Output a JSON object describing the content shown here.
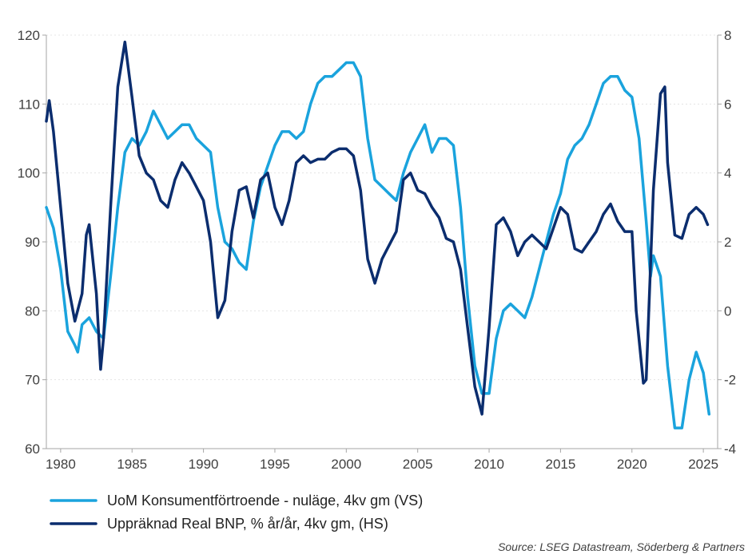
{
  "chart_data": {
    "type": "line",
    "title": "",
    "xlabel": "",
    "ylabel_left": "",
    "ylabel_right": "",
    "x_ticks": [
      1980,
      1985,
      1990,
      1995,
      2000,
      2005,
      2010,
      2015,
      2020,
      2025
    ],
    "xlim": [
      1979,
      2026
    ],
    "ylim_left": [
      60,
      120
    ],
    "ylim_right": [
      -4,
      8
    ],
    "y_ticks_left": [
      60,
      70,
      80,
      90,
      100,
      110,
      120
    ],
    "y_ticks_right": [
      -4,
      -2,
      0,
      2,
      4,
      6,
      8
    ],
    "grid": true,
    "legend_position": "bottom-left",
    "series": [
      {
        "name": "UoM Konsumentförtroende - nuläge, 4kv gm (VS)",
        "axis": "left",
        "color": "#1aa3dd",
        "points": [
          [
            1979.0,
            95
          ],
          [
            1979.5,
            92
          ],
          [
            1980.0,
            86
          ],
          [
            1980.5,
            77
          ],
          [
            1981.0,
            75
          ],
          [
            1981.2,
            74
          ],
          [
            1981.5,
            78
          ],
          [
            1982.0,
            79
          ],
          [
            1982.5,
            77
          ],
          [
            1983.0,
            76
          ],
          [
            1983.5,
            85
          ],
          [
            1984.0,
            95
          ],
          [
            1984.5,
            103
          ],
          [
            1985.0,
            105
          ],
          [
            1985.5,
            104
          ],
          [
            1986.0,
            106
          ],
          [
            1986.5,
            109
          ],
          [
            1987.0,
            107
          ],
          [
            1987.5,
            105
          ],
          [
            1988.0,
            106
          ],
          [
            1988.5,
            107
          ],
          [
            1989.0,
            107
          ],
          [
            1989.5,
            105
          ],
          [
            1990.0,
            104
          ],
          [
            1990.5,
            103
          ],
          [
            1991.0,
            95
          ],
          [
            1991.5,
            90
          ],
          [
            1992.0,
            89
          ],
          [
            1992.5,
            87
          ],
          [
            1993.0,
            86
          ],
          [
            1993.5,
            93
          ],
          [
            1994.0,
            98
          ],
          [
            1994.5,
            101
          ],
          [
            1995.0,
            104
          ],
          [
            1995.5,
            106
          ],
          [
            1996.0,
            106
          ],
          [
            1996.5,
            105
          ],
          [
            1997.0,
            106
          ],
          [
            1997.5,
            110
          ],
          [
            1998.0,
            113
          ],
          [
            1998.5,
            114
          ],
          [
            1999.0,
            114
          ],
          [
            1999.5,
            115
          ],
          [
            2000.0,
            116
          ],
          [
            2000.5,
            116
          ],
          [
            2001.0,
            114
          ],
          [
            2001.5,
            105
          ],
          [
            2002.0,
            99
          ],
          [
            2002.5,
            98
          ],
          [
            2003.0,
            97
          ],
          [
            2003.5,
            96
          ],
          [
            2004.0,
            100
          ],
          [
            2004.5,
            103
          ],
          [
            2005.0,
            105
          ],
          [
            2005.5,
            107
          ],
          [
            2006.0,
            103
          ],
          [
            2006.5,
            105
          ],
          [
            2007.0,
            105
          ],
          [
            2007.5,
            104
          ],
          [
            2008.0,
            95
          ],
          [
            2008.5,
            82
          ],
          [
            2009.0,
            72
          ],
          [
            2009.5,
            68
          ],
          [
            2010.0,
            68
          ],
          [
            2010.5,
            76
          ],
          [
            2011.0,
            80
          ],
          [
            2011.5,
            81
          ],
          [
            2012.0,
            80
          ],
          [
            2012.5,
            79
          ],
          [
            2013.0,
            82
          ],
          [
            2013.5,
            86
          ],
          [
            2014.0,
            90
          ],
          [
            2014.5,
            94
          ],
          [
            2015.0,
            97
          ],
          [
            2015.5,
            102
          ],
          [
            2016.0,
            104
          ],
          [
            2016.5,
            105
          ],
          [
            2017.0,
            107
          ],
          [
            2017.5,
            110
          ],
          [
            2018.0,
            113
          ],
          [
            2018.5,
            114
          ],
          [
            2019.0,
            114
          ],
          [
            2019.5,
            112
          ],
          [
            2020.0,
            111
          ],
          [
            2020.5,
            105
          ],
          [
            2021.0,
            93
          ],
          [
            2021.3,
            85
          ],
          [
            2021.5,
            88
          ],
          [
            2022.0,
            85
          ],
          [
            2022.5,
            72
          ],
          [
            2023.0,
            63
          ],
          [
            2023.5,
            63
          ],
          [
            2024.0,
            70
          ],
          [
            2024.5,
            74
          ],
          [
            2025.0,
            71
          ],
          [
            2025.4,
            65
          ]
        ]
      },
      {
        "name": "Uppräknad Real BNP, % år/år, 4kv gm, (HS)",
        "axis": "right",
        "color": "#0b2d6e",
        "points": [
          [
            1979.0,
            5.5
          ],
          [
            1979.2,
            6.1
          ],
          [
            1979.5,
            5.2
          ],
          [
            1980.0,
            3.0
          ],
          [
            1980.5,
            0.8
          ],
          [
            1981.0,
            -0.3
          ],
          [
            1981.5,
            0.5
          ],
          [
            1981.8,
            2.2
          ],
          [
            1982.0,
            2.5
          ],
          [
            1982.5,
            0.5
          ],
          [
            1982.8,
            -1.7
          ],
          [
            1983.0,
            -0.8
          ],
          [
            1983.5,
            3.0
          ],
          [
            1984.0,
            6.5
          ],
          [
            1984.5,
            7.8
          ],
          [
            1985.0,
            6.2
          ],
          [
            1985.5,
            4.5
          ],
          [
            1986.0,
            4.0
          ],
          [
            1986.5,
            3.8
          ],
          [
            1987.0,
            3.2
          ],
          [
            1987.5,
            3.0
          ],
          [
            1988.0,
            3.8
          ],
          [
            1988.5,
            4.3
          ],
          [
            1989.0,
            4.0
          ],
          [
            1989.5,
            3.6
          ],
          [
            1990.0,
            3.2
          ],
          [
            1990.5,
            2.0
          ],
          [
            1991.0,
            -0.2
          ],
          [
            1991.5,
            0.3
          ],
          [
            1992.0,
            2.3
          ],
          [
            1992.5,
            3.5
          ],
          [
            1993.0,
            3.6
          ],
          [
            1993.5,
            2.7
          ],
          [
            1994.0,
            3.8
          ],
          [
            1994.5,
            4.0
          ],
          [
            1995.0,
            3.0
          ],
          [
            1995.5,
            2.5
          ],
          [
            1996.0,
            3.2
          ],
          [
            1996.5,
            4.3
          ],
          [
            1997.0,
            4.5
          ],
          [
            1997.5,
            4.3
          ],
          [
            1998.0,
            4.4
          ],
          [
            1998.5,
            4.4
          ],
          [
            1999.0,
            4.6
          ],
          [
            1999.5,
            4.7
          ],
          [
            2000.0,
            4.7
          ],
          [
            2000.5,
            4.5
          ],
          [
            2001.0,
            3.5
          ],
          [
            2001.5,
            1.5
          ],
          [
            2002.0,
            0.8
          ],
          [
            2002.5,
            1.5
          ],
          [
            2003.0,
            1.9
          ],
          [
            2003.5,
            2.3
          ],
          [
            2004.0,
            3.8
          ],
          [
            2004.5,
            4.0
          ],
          [
            2005.0,
            3.5
          ],
          [
            2005.5,
            3.4
          ],
          [
            2006.0,
            3.0
          ],
          [
            2006.5,
            2.7
          ],
          [
            2007.0,
            2.1
          ],
          [
            2007.5,
            2.0
          ],
          [
            2008.0,
            1.2
          ],
          [
            2008.5,
            -0.5
          ],
          [
            2009.0,
            -2.2
          ],
          [
            2009.5,
            -3.0
          ],
          [
            2010.0,
            -0.5
          ],
          [
            2010.5,
            2.5
          ],
          [
            2011.0,
            2.7
          ],
          [
            2011.5,
            2.3
          ],
          [
            2012.0,
            1.6
          ],
          [
            2012.5,
            2.0
          ],
          [
            2013.0,
            2.2
          ],
          [
            2013.5,
            2.0
          ],
          [
            2014.0,
            1.8
          ],
          [
            2014.5,
            2.4
          ],
          [
            2015.0,
            3.0
          ],
          [
            2015.5,
            2.8
          ],
          [
            2016.0,
            1.8
          ],
          [
            2016.5,
            1.7
          ],
          [
            2017.0,
            2.0
          ],
          [
            2017.5,
            2.3
          ],
          [
            2018.0,
            2.8
          ],
          [
            2018.5,
            3.1
          ],
          [
            2019.0,
            2.6
          ],
          [
            2019.5,
            2.3
          ],
          [
            2020.0,
            2.3
          ],
          [
            2020.3,
            0.0
          ],
          [
            2020.8,
            -2.1
          ],
          [
            2021.0,
            -2.0
          ],
          [
            2021.5,
            3.5
          ],
          [
            2022.0,
            6.3
          ],
          [
            2022.3,
            6.5
          ],
          [
            2022.5,
            4.3
          ],
          [
            2023.0,
            2.2
          ],
          [
            2023.5,
            2.1
          ],
          [
            2024.0,
            2.8
          ],
          [
            2024.5,
            3.0
          ],
          [
            2025.0,
            2.8
          ],
          [
            2025.3,
            2.5
          ]
        ]
      }
    ],
    "source": "Source: LSEG Datastream, Söderberg & Partners"
  }
}
